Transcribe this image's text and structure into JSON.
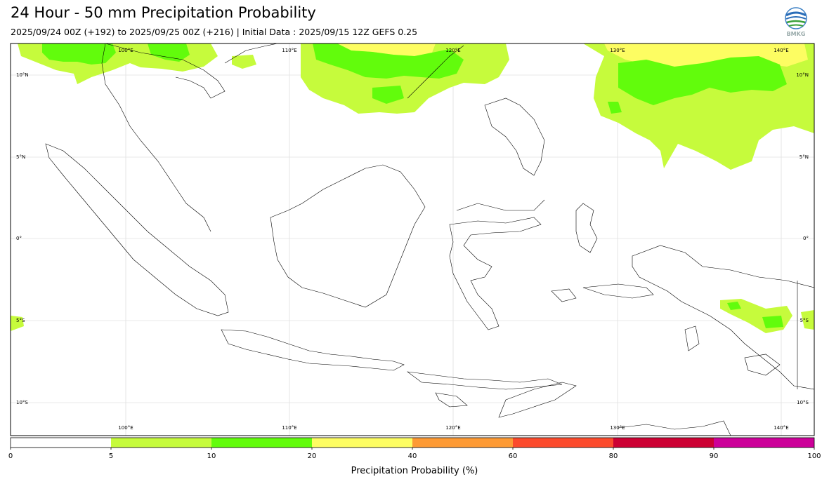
{
  "title": "24 Hour - 50 mm Precipitation Probability",
  "subtitle": "2025/09/24 00Z (+192) to 2025/09/25 00Z (+216) | Initial Data : 2025/09/15 12Z GEFS 0.25",
  "logo_text": "BMKG",
  "map": {
    "lon_labels": [
      "100°E",
      "110°E",
      "120°E",
      "130°E",
      "140°E"
    ],
    "lat_labels_left": [
      "10°N",
      "5°N",
      "0°",
      "5°S",
      "10°S"
    ],
    "lat_labels_right": [
      "10°N",
      "5°N",
      "0°",
      "5°S",
      "10°S"
    ]
  },
  "colorbar": {
    "ticks": [
      "0",
      "5",
      "10",
      "20",
      "40",
      "60",
      "80",
      "90",
      "100"
    ],
    "colors": [
      "#ffffff",
      "#c6fb3c",
      "#62fc0c",
      "#fdfd62",
      "#fd9a34",
      "#fb4a2c",
      "#cc0033",
      "#cc0099"
    ],
    "label": "Precipitation Probability (%)"
  }
}
